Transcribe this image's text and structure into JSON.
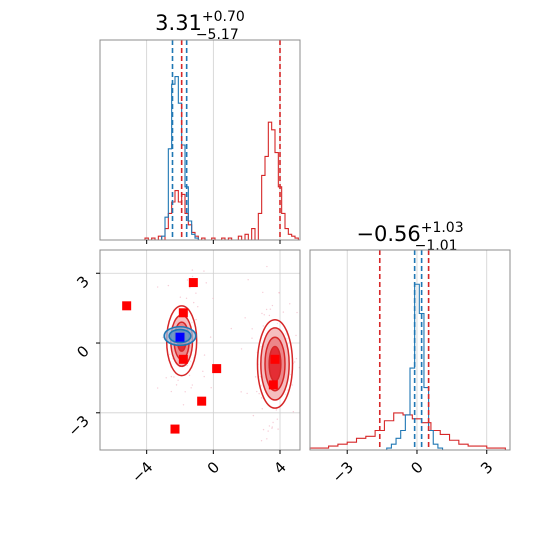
{
  "chart_data": {
    "type": "corner",
    "colors": {
      "blue": "#1f77b4",
      "red": "#d62728",
      "red_fill_light": "#f4b6b8",
      "red_fill_dark": "#e3242b",
      "marker_blue": "#0000ff",
      "marker_red": "#ff0000",
      "scatter_pink": "#f2b8c6"
    },
    "panels": [
      {
        "id": "marginal-p1",
        "type": "histogram",
        "title": {
          "main": "3.31",
          "sup": "+0.70",
          "sub": "−5.17"
        },
        "xlim": [
          -6.8,
          5.2
        ],
        "grid": true,
        "blue_series": {
          "bin_centers": [
            -3.0,
            -2.8,
            -2.6,
            -2.4,
            -2.2,
            -2.0,
            -1.8,
            -1.6,
            -1.4,
            -1.2,
            -1.0
          ],
          "heights": [
            0.02,
            0.12,
            0.48,
            0.82,
            0.86,
            0.72,
            0.5,
            0.28,
            0.1,
            0.03,
            0.01
          ]
        },
        "red_series": {
          "bin_centers": [
            -4.0,
            -3.6,
            -3.2,
            -2.8,
            -2.6,
            -2.4,
            -2.2,
            -2.0,
            -1.8,
            -1.6,
            -1.4,
            -1.2,
            -1.0,
            -0.6,
            0.0,
            0.6,
            1.0,
            1.6,
            2.0,
            2.4,
            2.8,
            3.0,
            3.2,
            3.4,
            3.6,
            3.8,
            4.0,
            4.2,
            4.4,
            4.6,
            4.8,
            5.0
          ],
          "heights": [
            0.01,
            0.01,
            0.02,
            0.06,
            0.14,
            0.2,
            0.26,
            0.2,
            0.24,
            0.14,
            0.08,
            0.04,
            0.02,
            0.01,
            0.01,
            0.01,
            0.01,
            0.02,
            0.03,
            0.06,
            0.14,
            0.34,
            0.44,
            0.62,
            0.58,
            0.46,
            0.28,
            0.14,
            0.06,
            0.03,
            0.02,
            0.01
          ]
        },
        "blue_quantiles": [
          -2.45,
          -1.6
        ],
        "red_quantiles": [
          -1.9,
          4.0
        ]
      },
      {
        "id": "joint-p1-p2",
        "type": "contour",
        "xlim": [
          -6.8,
          5.2
        ],
        "ylim": [
          -4.6,
          4.0
        ],
        "xticks": [
          -4,
          0,
          4
        ],
        "xtick_labels": [
          "−4",
          "0",
          "4"
        ],
        "yticks": [
          -3,
          0,
          3
        ],
        "ytick_labels": [
          "−3",
          "0",
          "3"
        ],
        "grid": true,
        "red_modes": [
          {
            "x": -1.9,
            "y": 0.1,
            "levels": [
              [
                0.9,
                1.5
              ],
              [
                0.65,
                1.1
              ],
              [
                0.45,
                0.8
              ],
              [
                0.25,
                0.45
              ]
            ]
          },
          {
            "x": 3.7,
            "y": -0.9,
            "levels": [
              [
                1.05,
                1.9
              ],
              [
                0.85,
                1.55
              ],
              [
                0.6,
                1.15
              ],
              [
                0.35,
                0.75
              ]
            ]
          }
        ],
        "blue_mode": {
          "x": -2.0,
          "y": 0.3,
          "levels": [
            [
              0.95,
              0.4
            ],
            [
              0.65,
              0.28
            ]
          ]
        },
        "red_markers": [
          {
            "x": -5.2,
            "y": 1.6
          },
          {
            "x": -1.2,
            "y": 2.6
          },
          {
            "x": -1.8,
            "y": 1.3
          },
          {
            "x": -1.8,
            "y": -0.7
          },
          {
            "x": 0.2,
            "y": -1.1
          },
          {
            "x": -0.7,
            "y": -2.5
          },
          {
            "x": -2.3,
            "y": -3.7
          },
          {
            "x": 3.7,
            "y": -0.7
          },
          {
            "x": 3.6,
            "y": -1.8
          }
        ],
        "blue_marker": {
          "x": -2.0,
          "y": 0.25
        }
      },
      {
        "id": "marginal-p2",
        "type": "histogram",
        "title": {
          "main": "−0.56",
          "sup": "+1.03",
          "sub": "−1.01"
        },
        "xlim": [
          -4.6,
          4.0
        ],
        "xticks": [
          -3,
          0,
          3
        ],
        "xtick_labels": [
          "−3",
          "0",
          "3"
        ],
        "grid": true,
        "blue_series": {
          "bin_centers": [
            -1.2,
            -1.0,
            -0.8,
            -0.6,
            -0.4,
            -0.2,
            0.0,
            0.2,
            0.4,
            0.6,
            0.8,
            1.0
          ],
          "heights": [
            0.01,
            0.03,
            0.06,
            0.1,
            0.18,
            0.42,
            0.85,
            0.7,
            0.32,
            0.1,
            0.03,
            0.01
          ]
        },
        "red_series": {
          "bin_centers": [
            -4.4,
            -4.0,
            -3.6,
            -3.2,
            -2.8,
            -2.4,
            -2.0,
            -1.6,
            -1.2,
            -0.8,
            -0.4,
            0.0,
            0.4,
            0.8,
            1.2,
            1.6,
            2.0,
            2.4,
            2.8,
            3.2,
            3.6
          ],
          "heights": [
            0.01,
            0.01,
            0.02,
            0.03,
            0.04,
            0.06,
            0.07,
            0.1,
            0.15,
            0.19,
            0.18,
            0.16,
            0.14,
            0.1,
            0.08,
            0.05,
            0.03,
            0.02,
            0.02,
            0.01,
            0.01
          ]
        },
        "blue_quantiles": [
          -0.1,
          0.2
        ],
        "red_quantiles": [
          -1.6,
          0.5
        ]
      }
    ]
  }
}
